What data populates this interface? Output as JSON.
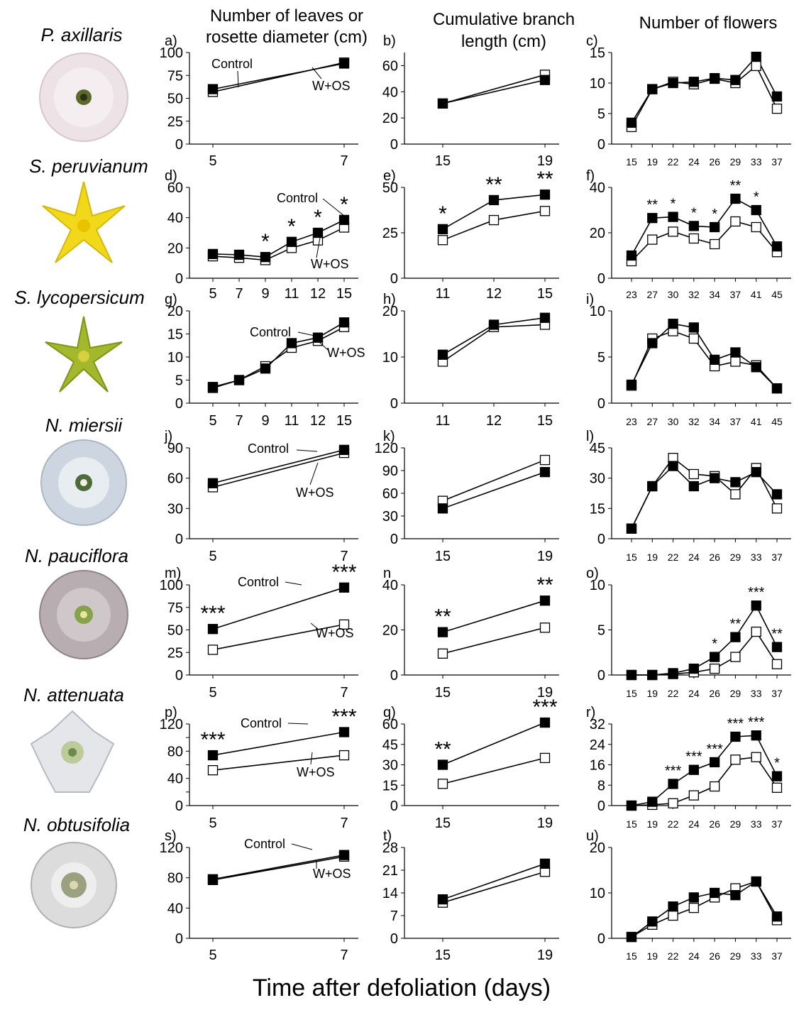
{
  "figure": {
    "col_headers": [
      "Number of leaves or",
      "rosette diameter (cm)",
      "Cumulative branch",
      "length (cm)",
      "Number of flowers"
    ],
    "x_title": "Time after defoliation (days)",
    "legend_control": "Control",
    "legend_wos": "W+OS",
    "species": [
      "P. axillaris",
      "S. peruvianum",
      "S. lycopersicum",
      "N. miersii",
      "N. pauciflora",
      "N. attenuata",
      "N. obtusifolia"
    ]
  },
  "colors": {
    "control": "#000000",
    "wos": "#ffffff",
    "axis": "#000000"
  },
  "chart_data": [
    {
      "id": "a",
      "letter": "a)",
      "type": "line",
      "x": [
        5,
        7
      ],
      "series": [
        {
          "name": "Control",
          "values": [
            60,
            88
          ]
        },
        {
          "name": "W+OS",
          "values": [
            57,
            89
          ]
        }
      ],
      "ylim": [
        0,
        100
      ],
      "yticks": [
        0,
        25,
        50,
        75,
        100
      ],
      "sig": []
    },
    {
      "id": "b",
      "letter": "b)",
      "type": "line",
      "x": [
        15,
        19
      ],
      "series": [
        {
          "name": "Control",
          "values": [
            31,
            49
          ]
        },
        {
          "name": "W+OS",
          "values": [
            31,
            53
          ]
        }
      ],
      "ylim": [
        0,
        70
      ],
      "yticks": [
        0,
        20,
        40,
        60
      ],
      "sig": []
    },
    {
      "id": "c",
      "letter": "c)",
      "type": "line",
      "x": [
        15,
        19,
        22,
        24,
        26,
        29,
        33,
        37
      ],
      "series": [
        {
          "name": "Control",
          "values": [
            3.5,
            9,
            10,
            10.2,
            10.8,
            10.5,
            14.3,
            7.8
          ]
        },
        {
          "name": "W+OS",
          "values": [
            2.8,
            9,
            10.2,
            9.8,
            10.7,
            10,
            12.8,
            5.8
          ]
        }
      ],
      "ylim": [
        0,
        15
      ],
      "yticks": [
        0,
        5,
        10,
        15
      ],
      "sig": []
    },
    {
      "id": "d",
      "letter": "d)",
      "type": "line",
      "x": [
        5,
        7,
        9,
        11,
        12,
        15
      ],
      "series": [
        {
          "name": "Control",
          "values": [
            16,
            15.5,
            14,
            24,
            30,
            38.5
          ]
        },
        {
          "name": "W+OS",
          "values": [
            14.5,
            13.5,
            12,
            20,
            25,
            33.5
          ]
        }
      ],
      "ylim": [
        0,
        60
      ],
      "yticks": [
        0,
        20,
        40,
        60
      ],
      "sig": [
        "",
        "",
        "*",
        "*",
        "*",
        "*"
      ]
    },
    {
      "id": "e",
      "letter": "e)",
      "type": "line",
      "x": [
        11,
        12,
        15
      ],
      "series": [
        {
          "name": "Control",
          "values": [
            27,
            43,
            46
          ]
        },
        {
          "name": "W+OS",
          "values": [
            21,
            32,
            37
          ]
        }
      ],
      "ylim": [
        0,
        50
      ],
      "yticks": [
        0,
        25,
        50
      ],
      "sig": [
        "*",
        "**",
        "**"
      ]
    },
    {
      "id": "f",
      "letter": "f)",
      "type": "line",
      "x": [
        23,
        27,
        30,
        32,
        34,
        37,
        41,
        45
      ],
      "series": [
        {
          "name": "Control",
          "values": [
            10,
            26.5,
            27,
            23,
            22.5,
            35,
            30,
            14
          ]
        },
        {
          "name": "W+OS",
          "values": [
            7.5,
            17,
            20.5,
            17.5,
            15,
            25,
            22.5,
            11.5
          ]
        }
      ],
      "ylim": [
        0,
        40
      ],
      "yticks": [
        0,
        20,
        40
      ],
      "sig": [
        "",
        "**",
        "*",
        "*",
        "*",
        "**",
        "*",
        ""
      ]
    },
    {
      "id": "g",
      "letter": "g)",
      "type": "line",
      "x": [
        5,
        7,
        9,
        11,
        12,
        15
      ],
      "series": [
        {
          "name": "Control",
          "values": [
            3.5,
            5,
            7.5,
            13,
            14.2,
            17.5
          ]
        },
        {
          "name": "W+OS",
          "values": [
            3.3,
            5,
            8,
            12,
            13.5,
            16.5
          ]
        }
      ],
      "ylim": [
        0,
        20
      ],
      "yticks": [
        0,
        5,
        10,
        15,
        20
      ],
      "sig": []
    },
    {
      "id": "h",
      "letter": "h)",
      "type": "line",
      "x": [
        11,
        12,
        15
      ],
      "series": [
        {
          "name": "Control",
          "values": [
            10.5,
            17,
            18.5
          ]
        },
        {
          "name": "W+OS",
          "values": [
            9,
            16.5,
            17
          ]
        }
      ],
      "ylim": [
        0,
        20
      ],
      "yticks": [
        0,
        10,
        20
      ],
      "sig": []
    },
    {
      "id": "i",
      "letter": "i)",
      "type": "line",
      "x": [
        23,
        27,
        30,
        32,
        34,
        37,
        41,
        45
      ],
      "series": [
        {
          "name": "Control",
          "values": [
            2,
            6.5,
            8.6,
            8.2,
            4.7,
            5.5,
            3.9,
            1.6
          ]
        },
        {
          "name": "W+OS",
          "values": [
            1.9,
            7,
            7.8,
            7,
            4,
            4.5,
            4.1,
            1.6
          ]
        }
      ],
      "ylim": [
        0,
        10
      ],
      "yticks": [
        0,
        5,
        10
      ],
      "sig": []
    },
    {
      "id": "j",
      "letter": "j)",
      "type": "line",
      "x": [
        5,
        7
      ],
      "series": [
        {
          "name": "Control",
          "values": [
            55,
            88
          ]
        },
        {
          "name": "W+OS",
          "values": [
            51,
            85
          ]
        }
      ],
      "ylim": [
        0,
        90
      ],
      "yticks": [
        0,
        30,
        60,
        90
      ],
      "sig": []
    },
    {
      "id": "k",
      "letter": "k)",
      "type": "line",
      "x": [
        15,
        19
      ],
      "series": [
        {
          "name": "Control",
          "values": [
            40,
            88
          ]
        },
        {
          "name": "W+OS",
          "values": [
            50,
            104
          ]
        }
      ],
      "ylim": [
        0,
        120
      ],
      "yticks": [
        0,
        30,
        60,
        90,
        120
      ],
      "sig": []
    },
    {
      "id": "l",
      "letter": "l)",
      "type": "line",
      "x": [
        15,
        19,
        22,
        24,
        26,
        29,
        33,
        37
      ],
      "series": [
        {
          "name": "Control",
          "values": [
            5,
            26,
            36,
            26,
            30,
            28,
            33,
            22
          ]
        },
        {
          "name": "W+OS",
          "values": [
            5,
            26,
            40,
            32,
            31,
            22,
            35,
            15
          ]
        }
      ],
      "ylim": [
        0,
        45
      ],
      "yticks": [
        0,
        15,
        30,
        45
      ],
      "sig": []
    },
    {
      "id": "m",
      "letter": "m)",
      "type": "line",
      "x": [
        5,
        7
      ],
      "series": [
        {
          "name": "Control",
          "values": [
            51,
            97
          ]
        },
        {
          "name": "W+OS",
          "values": [
            28,
            56
          ]
        }
      ],
      "ylim": [
        0,
        100
      ],
      "yticks": [
        0,
        25,
        50,
        75,
        100
      ],
      "sig": [
        "***",
        "***"
      ]
    },
    {
      "id": "n",
      "letter": "n",
      "type": "line",
      "x": [
        15,
        19
      ],
      "series": [
        {
          "name": "Control",
          "values": [
            19,
            33
          ]
        },
        {
          "name": "W+OS",
          "values": [
            9.5,
            21
          ]
        }
      ],
      "ylim": [
        0,
        40
      ],
      "yticks": [
        0,
        20,
        40
      ],
      "sig": [
        "**",
        "**"
      ]
    },
    {
      "id": "o",
      "letter": "o)",
      "type": "line",
      "x": [
        15,
        19,
        22,
        24,
        26,
        29,
        33,
        37
      ],
      "series": [
        {
          "name": "Control",
          "values": [
            0,
            0,
            0.2,
            0.7,
            2,
            4.2,
            7.7,
            3.1
          ]
        },
        {
          "name": "W+OS",
          "values": [
            0,
            0,
            0.1,
            0.3,
            0.7,
            2,
            4.8,
            1.2
          ]
        }
      ],
      "ylim": [
        0,
        10
      ],
      "yticks": [
        0,
        5,
        10
      ],
      "sig": [
        "",
        "",
        "",
        "",
        "*",
        "**",
        "***",
        "**"
      ]
    },
    {
      "id": "p",
      "letter": "p)",
      "type": "line",
      "x": [
        5,
        7
      ],
      "series": [
        {
          "name": "Control",
          "values": [
            74,
            108
          ]
        },
        {
          "name": "W+OS",
          "values": [
            52,
            74
          ]
        }
      ],
      "ylim": [
        0,
        120
      ],
      "yticks": [
        0,
        20,
        40,
        60,
        80,
        100,
        120
      ],
      "ylabels": [
        "0",
        "",
        "40",
        "",
        "80",
        "",
        "120"
      ],
      "sig": [
        "***",
        "***"
      ]
    },
    {
      "id": "q",
      "letter": "q)",
      "type": "line",
      "x": [
        15,
        19
      ],
      "series": [
        {
          "name": "Control",
          "values": [
            30,
            61
          ]
        },
        {
          "name": "W+OS",
          "values": [
            16,
            35
          ]
        }
      ],
      "ylim": [
        0,
        60
      ],
      "yticks": [
        0,
        15,
        30,
        45,
        60
      ],
      "sig": [
        "**",
        "***"
      ]
    },
    {
      "id": "r",
      "letter": "r)",
      "type": "line",
      "x": [
        15,
        19,
        22,
        24,
        26,
        29,
        33,
        37
      ],
      "series": [
        {
          "name": "Control",
          "values": [
            0,
            1.5,
            8.5,
            14,
            17,
            27,
            27.5,
            11.5
          ]
        },
        {
          "name": "W+OS",
          "values": [
            0,
            0.3,
            0.9,
            4,
            7.5,
            18,
            19,
            7
          ]
        }
      ],
      "ylim": [
        0,
        32
      ],
      "yticks": [
        0,
        8,
        16,
        24,
        32
      ],
      "sig": [
        "",
        "",
        "***",
        "***",
        "***",
        "***",
        "***",
        "*"
      ]
    },
    {
      "id": "s",
      "letter": "s)",
      "type": "line",
      "x": [
        5,
        7
      ],
      "series": [
        {
          "name": "Control",
          "values": [
            78,
            110
          ]
        },
        {
          "name": "W+OS",
          "values": [
            77,
            108
          ]
        }
      ],
      "ylim": [
        0,
        120
      ],
      "yticks": [
        0,
        40,
        80,
        120
      ],
      "sig": []
    },
    {
      "id": "t",
      "letter": "t)",
      "type": "line",
      "x": [
        15,
        19
      ],
      "series": [
        {
          "name": "Control",
          "values": [
            12,
            23
          ]
        },
        {
          "name": "W+OS",
          "values": [
            11,
            20.5
          ]
        }
      ],
      "ylim": [
        0,
        28
      ],
      "yticks": [
        0,
        7,
        14,
        21,
        28
      ],
      "sig": []
    },
    {
      "id": "u",
      "letter": "u)",
      "type": "line",
      "x": [
        15,
        19,
        22,
        24,
        26,
        29,
        33,
        37
      ],
      "series": [
        {
          "name": "Control",
          "values": [
            0.3,
            3.7,
            7,
            9,
            10,
            9.5,
            12.5,
            4.8
          ]
        },
        {
          "name": "W+OS",
          "values": [
            0.3,
            3,
            5,
            6.7,
            9,
            11,
            12.5,
            4
          ]
        }
      ],
      "ylim": [
        0,
        20
      ],
      "yticks": [
        0,
        10,
        20
      ],
      "sig": []
    }
  ]
}
